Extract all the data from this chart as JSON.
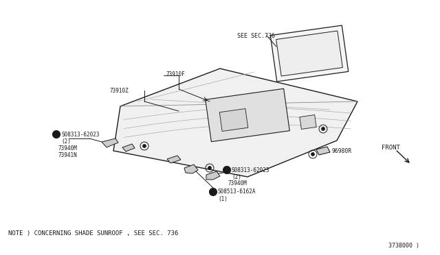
{
  "bg_color": "#ffffff",
  "line_color": "#1a1a1a",
  "fig_width": 6.4,
  "fig_height": 3.72,
  "dpi": 100,
  "note_text": "NOTE ) CONCERNING SHADE SUNROOF , SEE SEC. 736",
  "part_number_br": "3738000 )",
  "labels": {
    "see_sec": "SEE SEC.736",
    "part_73910F": "73910F",
    "part_73910Z": "73910Z",
    "part_08313_left": "S08313-62023",
    "part_08313_left_qty": "(2)",
    "part_73940M_left": "73940M",
    "part_73941N": "73941N",
    "part_08313_bot": "S08313-62023",
    "part_08313_bot_qty": "(2)",
    "part_73940M_bot": "73940M",
    "part_08513": "S08513-6162A",
    "part_08513_qty": "(1)",
    "part_96980R": "96980R",
    "front_label": "FRONT"
  }
}
